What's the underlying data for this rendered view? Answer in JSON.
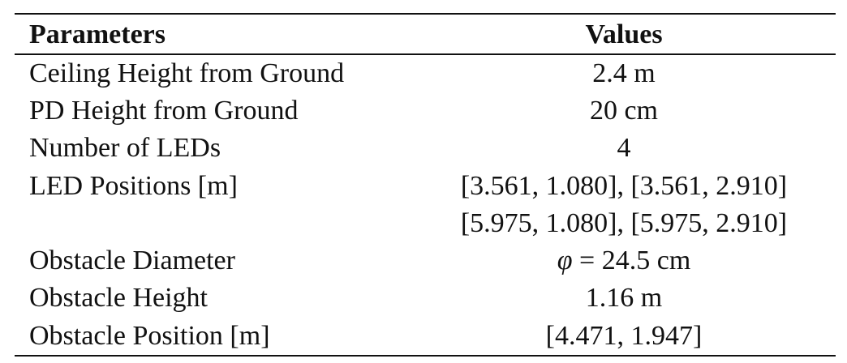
{
  "table": {
    "headers": {
      "parameter": "Parameters",
      "value": "Values"
    },
    "rows": [
      {
        "parameter": "Ceiling Height from Ground",
        "value": "2.4 m"
      },
      {
        "parameter": "PD Height from Ground",
        "value": "20 cm"
      },
      {
        "parameter": "Number of LEDs",
        "value": "4"
      },
      {
        "parameter": "LED Positions [m]",
        "value": "[3.561, 1.080], [3.561, 2.910]"
      },
      {
        "parameter": "",
        "value": "[5.975, 1.080], [5.975, 2.910]"
      },
      {
        "parameter": "Obstacle Diameter",
        "value_symbol": "φ",
        "value_rest": " = 24.5 cm"
      },
      {
        "parameter": "Obstacle Height",
        "value": "1.16 m"
      },
      {
        "parameter": "Obstacle Position [m]",
        "value": "[4.471, 1.947]"
      }
    ]
  }
}
